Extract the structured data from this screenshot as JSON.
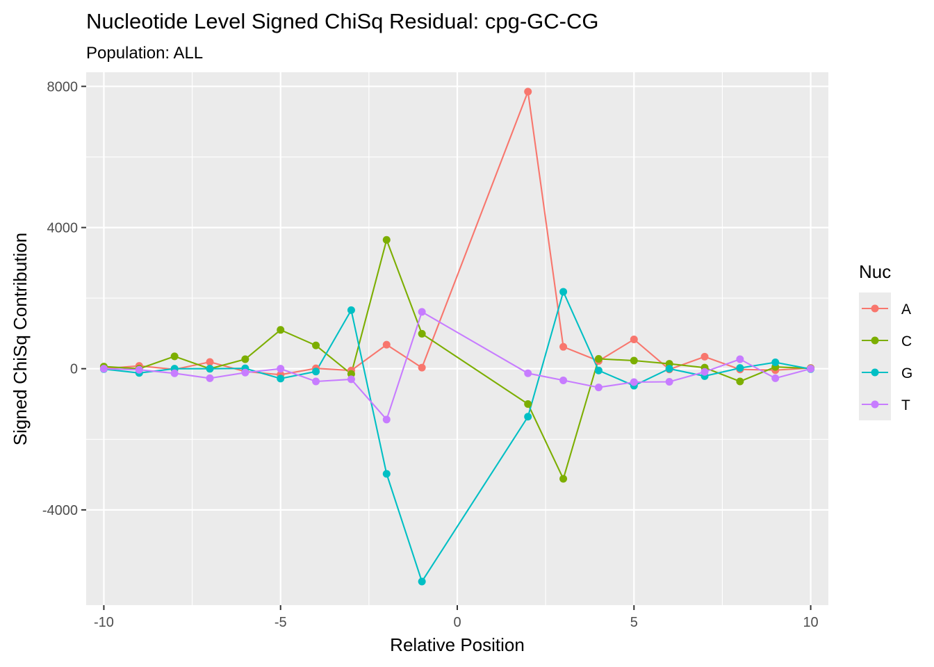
{
  "chart_data": {
    "type": "line",
    "title": "Nucleotide Level Signed ChiSq Residual: cpg-GC-CG",
    "subtitle": "Population: ALL",
    "xlabel": "Relative Position",
    "ylabel": "Signed ChiSq Contribution",
    "xlim": [
      -10.5,
      10.5
    ],
    "ylim": [
      -6700,
      8400
    ],
    "x_ticks": [
      -10,
      -5,
      0,
      5,
      10
    ],
    "x_tick_labels": [
      "-10",
      "-5",
      "0",
      "5",
      "10"
    ],
    "y_ticks": [
      -4000,
      0,
      4000,
      8000
    ],
    "y_tick_labels": [
      "-4000",
      "0",
      "4000",
      "8000"
    ],
    "grid": true,
    "legend": {
      "title": "Nuc",
      "position": "right"
    },
    "x": [
      -10,
      -9,
      -8,
      -7,
      -6,
      -5,
      -4,
      -3,
      -2,
      -1,
      2,
      3,
      4,
      5,
      6,
      7,
      8,
      9,
      10
    ],
    "series": [
      {
        "name": "A",
        "color": "#F8766D",
        "values": [
          0,
          80,
          -20,
          190,
          -80,
          -170,
          10,
          -50,
          680,
          30,
          7850,
          620,
          220,
          830,
          -20,
          340,
          -20,
          -40,
          20
        ]
      },
      {
        "name": "C",
        "color": "#7CAE00",
        "values": [
          60,
          0,
          350,
          0,
          270,
          1100,
          660,
          -150,
          3650,
          990,
          -1000,
          -3120,
          280,
          230,
          140,
          30,
          -360,
          50,
          10
        ]
      },
      {
        "name": "G",
        "color": "#00BFC4",
        "values": [
          -10,
          -120,
          0,
          0,
          10,
          -280,
          -80,
          1660,
          -2980,
          -6030,
          -1360,
          2180,
          -50,
          -480,
          0,
          -210,
          20,
          180,
          -10
        ]
      },
      {
        "name": "T",
        "color": "#C77CFF",
        "values": [
          0,
          -30,
          -130,
          -270,
          -110,
          0,
          -360,
          -300,
          -1440,
          1610,
          -130,
          -330,
          -530,
          -380,
          -370,
          -90,
          270,
          -270,
          0
        ]
      }
    ]
  }
}
